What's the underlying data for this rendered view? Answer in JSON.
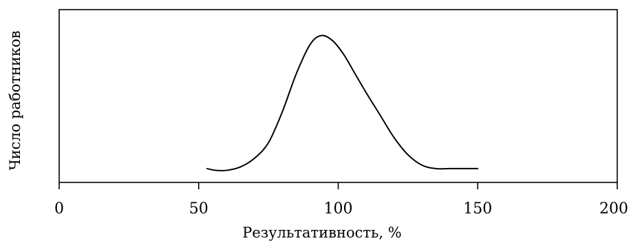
{
  "chart_data": {
    "type": "line",
    "title": "",
    "xlabel": "Результативность, %",
    "ylabel": "Число работников",
    "xlim": [
      0,
      200
    ],
    "ylim": [
      0,
      1
    ],
    "xticks": [
      "0",
      "50",
      "100",
      "150",
      "200"
    ],
    "y_tick_labels": false,
    "grid": false,
    "legend": "none",
    "line_color": "#000000",
    "series": [
      {
        "x": [
          53,
          56,
          60,
          65,
          70,
          75,
          80,
          85,
          90,
          94,
          98,
          102,
          106,
          110,
          115,
          120,
          125,
          130,
          135,
          140,
          145,
          150
        ],
        "y": [
          0.08,
          0.07,
          0.07,
          0.09,
          0.14,
          0.23,
          0.41,
          0.63,
          0.8,
          0.85,
          0.82,
          0.74,
          0.63,
          0.52,
          0.39,
          0.26,
          0.16,
          0.1,
          0.08,
          0.08,
          0.08,
          0.08
        ]
      }
    ]
  }
}
